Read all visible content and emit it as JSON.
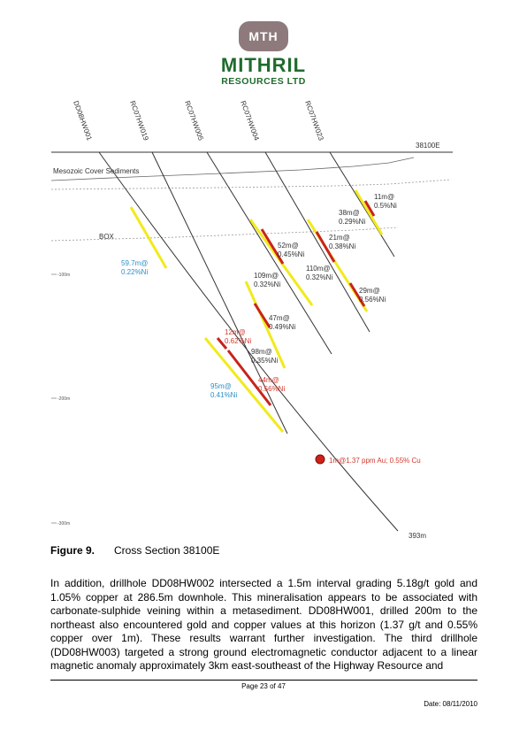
{
  "logo": {
    "badge": "MTH",
    "name": "MITHRIL",
    "subtitle": "RESOURCES LTD"
  },
  "section": {
    "easting": "38100E",
    "cover_label": "Mesozoic Cover Sediments",
    "box_label": "BOX",
    "depth_labels": [
      "-100m",
      "-200m",
      "-300m"
    ],
    "hole_names": [
      "DD08HW001",
      "RC07HW019",
      "RC07HW005",
      "RC07HW004",
      "RC07HW023"
    ],
    "end_depth": "393m",
    "gold_hit": "1m@1.37 ppm Au; 0.55% Cu",
    "intercepts": [
      {
        "l1": "59.7m@",
        "l2": "0.22%Ni",
        "color": "#2a8fc8"
      },
      {
        "l1": "95m@",
        "l2": "0.41%Ni",
        "color": "#2a8fc8"
      },
      {
        "l1": "12m@",
        "l2": "0.62%Ni",
        "color": "#d23a2e"
      },
      {
        "l1": "44m@",
        "l2": "0.56%Ni",
        "color": "#d23a2e"
      },
      {
        "l1": "98m@",
        "l2": "0.35%Ni",
        "color": "#333333"
      },
      {
        "l1": "109m@",
        "l2": "0.32%Ni",
        "color": "#333333"
      },
      {
        "l1": "47m@",
        "l2": "0.49%Ni",
        "color": "#333333"
      },
      {
        "l1": "52m@",
        "l2": "0.45%Ni",
        "color": "#333333"
      },
      {
        "l1": "110m@",
        "l2": "0.32%Ni",
        "color": "#333333"
      },
      {
        "l1": "21m@",
        "l2": "0.38%Ni",
        "color": "#333333"
      },
      {
        "l1": "29m@",
        "l2": "0.56%Ni",
        "color": "#333333"
      },
      {
        "l1": "38m@",
        "l2": "0.29%Ni",
        "color": "#333333"
      },
      {
        "l1": "11m@",
        "l2": "0.5%Ni",
        "color": "#333333"
      }
    ]
  },
  "caption": {
    "number": "Figure 9.",
    "title": "Cross Section 38100E"
  },
  "paragraph": "In addition, drillhole DD08HW002 intersected a 1.5m interval grading 5.18g/t gold and 1.05% copper at 286.5m downhole. This mineralisation appears to be associated with carbonate-sulphide veining within a metasediment. DD08HW001, drilled 200m to the northeast also encountered gold and copper values at this horizon (1.37 g/t and 0.55% copper over 1m). These results warrant further investigation. The third drillhole (DD08HW003) targeted a strong ground electromagnetic conductor adjacent to a linear magnetic anomaly approximately 3km east-southeast of the Highway Resource and",
  "footer": {
    "page": "Page 23 of 47",
    "date": "Date: 08/11/2010"
  }
}
